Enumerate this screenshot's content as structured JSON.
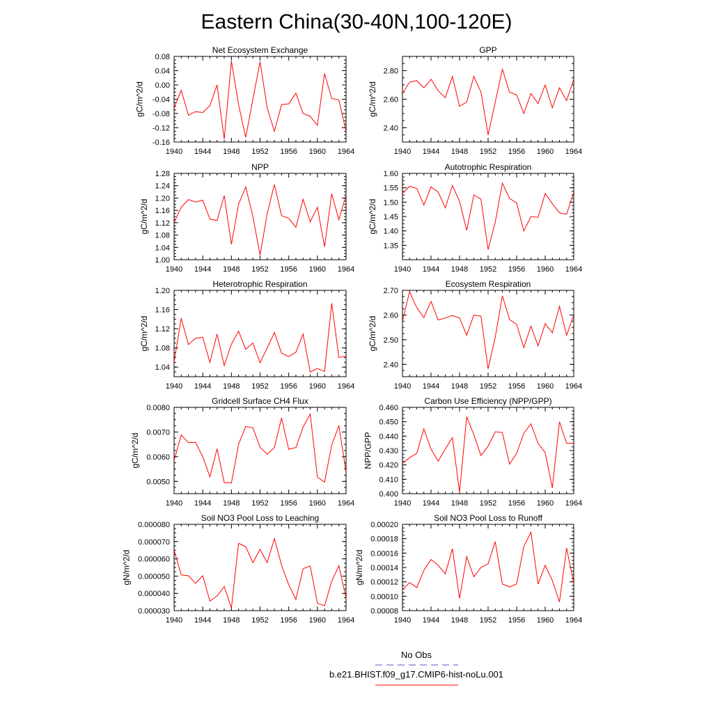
{
  "figure": {
    "title": "Eastern China(30-40N,100-120E)"
  },
  "legend": {
    "items": [
      {
        "label": "No Obs",
        "color": "#5555cc",
        "dash": "dashed"
      },
      {
        "label": "b.e21.BHIST.f09_g17.CMIP6-hist-noLu.001",
        "color": "#ff0000",
        "dash": "solid"
      }
    ]
  },
  "chart_data": [
    {
      "type": "line",
      "title": "Net Ecosystem Exchange",
      "ylabel": "gC/m^2/d",
      "x": [
        1940,
        1941,
        1942,
        1943,
        1944,
        1945,
        1946,
        1947,
        1948,
        1949,
        1950,
        1951,
        1952,
        1953,
        1954,
        1955,
        1956,
        1957,
        1958,
        1959,
        1960,
        1961,
        1962,
        1963,
        1964
      ],
      "xticks": [
        1940,
        1944,
        1948,
        1952,
        1956,
        1960,
        1964
      ],
      "xlim": [
        1940,
        1964
      ],
      "ylim": [
        -0.16,
        0.08
      ],
      "yticks": [
        -0.16,
        -0.12,
        -0.08,
        -0.04,
        0.0,
        0.04,
        0.08
      ],
      "ytick_labels": [
        "-0.16",
        "-0.12",
        "-0.08",
        "-0.04",
        "0.00",
        "0.04",
        "0.08"
      ],
      "series": [
        {
          "color": "#ff0000",
          "values": [
            -0.065,
            -0.015,
            -0.085,
            -0.075,
            -0.077,
            -0.058,
            0.0,
            -0.152,
            0.067,
            -0.055,
            -0.147,
            -0.04,
            0.065,
            -0.065,
            -0.13,
            -0.055,
            -0.053,
            -0.023,
            -0.08,
            -0.088,
            -0.113,
            0.032,
            -0.038,
            -0.042,
            -0.13
          ]
        }
      ]
    },
    {
      "type": "line",
      "title": "GPP",
      "ylabel": "gC/m^2/d",
      "x": [
        1940,
        1941,
        1942,
        1943,
        1944,
        1945,
        1946,
        1947,
        1948,
        1949,
        1950,
        1951,
        1952,
        1953,
        1954,
        1955,
        1956,
        1957,
        1958,
        1959,
        1960,
        1961,
        1962,
        1963,
        1964
      ],
      "xticks": [
        1940,
        1944,
        1948,
        1952,
        1956,
        1960,
        1964
      ],
      "xlim": [
        1940,
        1964
      ],
      "ylim": [
        2.3,
        2.9
      ],
      "yticks": [
        2.4,
        2.6,
        2.8
      ],
      "ytick_labels": [
        "2.40",
        "2.60",
        "2.80"
      ],
      "series": [
        {
          "color": "#ff0000",
          "values": [
            2.64,
            2.72,
            2.73,
            2.68,
            2.74,
            2.66,
            2.61,
            2.76,
            2.55,
            2.58,
            2.76,
            2.65,
            2.35,
            2.58,
            2.81,
            2.65,
            2.63,
            2.5,
            2.64,
            2.57,
            2.7,
            2.54,
            2.68,
            2.59,
            2.74
          ]
        }
      ]
    },
    {
      "type": "line",
      "title": "NPP",
      "ylabel": "gC/m^2/d",
      "x": [
        1940,
        1941,
        1942,
        1943,
        1944,
        1945,
        1946,
        1947,
        1948,
        1949,
        1950,
        1951,
        1952,
        1953,
        1954,
        1955,
        1956,
        1957,
        1958,
        1959,
        1960,
        1961,
        1962,
        1963,
        1964
      ],
      "xticks": [
        1940,
        1944,
        1948,
        1952,
        1956,
        1960,
        1964
      ],
      "xlim": [
        1940,
        1964
      ],
      "ylim": [
        1.0,
        1.28
      ],
      "yticks": [
        1.0,
        1.04,
        1.08,
        1.12,
        1.16,
        1.2,
        1.24,
        1.28
      ],
      "ytick_labels": [
        "1.00",
        "1.04",
        "1.08",
        "1.12",
        "1.16",
        "1.20",
        "1.24",
        "1.28"
      ],
      "series": [
        {
          "color": "#ff0000",
          "values": [
            1.12,
            1.17,
            1.195,
            1.187,
            1.193,
            1.132,
            1.127,
            1.208,
            1.05,
            1.18,
            1.236,
            1.14,
            1.015,
            1.15,
            1.244,
            1.143,
            1.134,
            1.105,
            1.196,
            1.123,
            1.17,
            1.042,
            1.214,
            1.13,
            1.21
          ]
        }
      ]
    },
    {
      "type": "line",
      "title": "Autotrophic Respiration",
      "ylabel": "gC/m^2/d",
      "x": [
        1940,
        1941,
        1942,
        1943,
        1944,
        1945,
        1946,
        1947,
        1948,
        1949,
        1950,
        1951,
        1952,
        1953,
        1954,
        1955,
        1956,
        1957,
        1958,
        1959,
        1960,
        1961,
        1962,
        1963,
        1964
      ],
      "xticks": [
        1940,
        1944,
        1948,
        1952,
        1956,
        1960,
        1964
      ],
      "xlim": [
        1940,
        1964
      ],
      "ylim": [
        1.3,
        1.6
      ],
      "yticks": [
        1.35,
        1.4,
        1.45,
        1.5,
        1.55,
        1.6
      ],
      "ytick_labels": [
        "1.35",
        "1.40",
        "1.45",
        "1.50",
        "1.55",
        "1.60"
      ],
      "series": [
        {
          "color": "#ff0000",
          "values": [
            1.53,
            1.555,
            1.548,
            1.49,
            1.553,
            1.535,
            1.48,
            1.558,
            1.503,
            1.402,
            1.525,
            1.51,
            1.335,
            1.43,
            1.566,
            1.513,
            1.497,
            1.4,
            1.45,
            1.447,
            1.53,
            1.495,
            1.463,
            1.458,
            1.535
          ]
        }
      ]
    },
    {
      "type": "line",
      "title": "Heterotrophic Respiration",
      "ylabel": "gC/m^2/d",
      "x": [
        1940,
        1941,
        1942,
        1943,
        1944,
        1945,
        1946,
        1947,
        1948,
        1949,
        1950,
        1951,
        1952,
        1953,
        1954,
        1955,
        1956,
        1957,
        1958,
        1959,
        1960,
        1961,
        1962,
        1963,
        1964
      ],
      "xticks": [
        1940,
        1944,
        1948,
        1952,
        1956,
        1960,
        1964
      ],
      "xlim": [
        1940,
        1964
      ],
      "ylim": [
        1.02,
        1.2
      ],
      "yticks": [
        1.04,
        1.08,
        1.12,
        1.16,
        1.2
      ],
      "ytick_labels": [
        "1.04",
        "1.08",
        "1.12",
        "1.16",
        "1.20"
      ],
      "series": [
        {
          "color": "#ff0000",
          "values": [
            1.05,
            1.142,
            1.087,
            1.1,
            1.102,
            1.05,
            1.109,
            1.043,
            1.088,
            1.115,
            1.077,
            1.09,
            1.049,
            1.08,
            1.112,
            1.069,
            1.062,
            1.071,
            1.109,
            1.03,
            1.037,
            1.031,
            1.173,
            1.06,
            1.063
          ]
        }
      ]
    },
    {
      "type": "line",
      "title": "Ecosystem Respiration",
      "ylabel": "gC/m^2/d",
      "x": [
        1940,
        1941,
        1942,
        1943,
        1944,
        1945,
        1946,
        1947,
        1948,
        1949,
        1950,
        1951,
        1952,
        1953,
        1954,
        1955,
        1956,
        1957,
        1958,
        1959,
        1960,
        1961,
        1962,
        1963,
        1964
      ],
      "xticks": [
        1940,
        1944,
        1948,
        1952,
        1956,
        1960,
        1964
      ],
      "xlim": [
        1940,
        1964
      ],
      "ylim": [
        2.35,
        2.7
      ],
      "yticks": [
        2.4,
        2.5,
        2.6,
        2.7
      ],
      "ytick_labels": [
        "2.40",
        "2.50",
        "2.60",
        "2.70"
      ],
      "series": [
        {
          "color": "#ff0000",
          "values": [
            2.575,
            2.695,
            2.63,
            2.59,
            2.655,
            2.58,
            2.588,
            2.598,
            2.588,
            2.518,
            2.6,
            2.595,
            2.382,
            2.51,
            2.678,
            2.582,
            2.562,
            2.468,
            2.555,
            2.475,
            2.565,
            2.528,
            2.635,
            2.518,
            2.6
          ]
        }
      ]
    },
    {
      "type": "line",
      "title": "Gridcell Surface CH4 Flux",
      "ylabel": "gC/m^2/d",
      "x": [
        1940,
        1941,
        1942,
        1943,
        1944,
        1945,
        1946,
        1947,
        1948,
        1949,
        1950,
        1951,
        1952,
        1953,
        1954,
        1955,
        1956,
        1957,
        1958,
        1959,
        1960,
        1961,
        1962,
        1963,
        1964
      ],
      "xticks": [
        1940,
        1944,
        1948,
        1952,
        1956,
        1960,
        1964
      ],
      "xlim": [
        1940,
        1964
      ],
      "ylim": [
        0.0045,
        0.008
      ],
      "yticks": [
        0.005,
        0.006,
        0.007,
        0.008
      ],
      "ytick_labels": [
        "0.0050",
        "0.0060",
        "0.0070",
        "0.0080"
      ],
      "series": [
        {
          "color": "#ff0000",
          "values": [
            0.00585,
            0.00688,
            0.00657,
            0.00658,
            0.006,
            0.00518,
            0.00632,
            0.00495,
            0.00493,
            0.0065,
            0.00723,
            0.00717,
            0.00638,
            0.0061,
            0.00637,
            0.00757,
            0.0063,
            0.00637,
            0.0072,
            0.00773,
            0.00517,
            0.00497,
            0.00648,
            0.00725,
            0.00538
          ]
        }
      ]
    },
    {
      "type": "line",
      "title": "Carbon Use Efficiency (NPP/GPP)",
      "ylabel": "NPP/GPP",
      "x": [
        1940,
        1941,
        1942,
        1943,
        1944,
        1945,
        1946,
        1947,
        1948,
        1949,
        1950,
        1951,
        1952,
        1953,
        1954,
        1955,
        1956,
        1957,
        1958,
        1959,
        1960,
        1961,
        1962,
        1963,
        1964
      ],
      "xticks": [
        1940,
        1944,
        1948,
        1952,
        1956,
        1960,
        1964
      ],
      "xlim": [
        1940,
        1964
      ],
      "ylim": [
        0.4,
        0.46
      ],
      "yticks": [
        0.4,
        0.41,
        0.42,
        0.43,
        0.44,
        0.45,
        0.46
      ],
      "ytick_labels": [
        "0.400",
        "0.410",
        "0.420",
        "0.430",
        "0.440",
        "0.450",
        "0.460"
      ],
      "series": [
        {
          "color": "#ff0000",
          "values": [
            0.421,
            0.425,
            0.428,
            0.445,
            0.431,
            0.4225,
            0.431,
            0.439,
            0.401,
            0.4535,
            0.441,
            0.4265,
            0.433,
            0.443,
            0.4425,
            0.4205,
            0.428,
            0.442,
            0.4485,
            0.435,
            0.4285,
            0.404,
            0.45,
            0.435,
            0.435
          ]
        }
      ]
    },
    {
      "type": "line",
      "title": "Soil NO3 Pool Loss to Leaching",
      "ylabel": "gN/m^2/d",
      "x": [
        1940,
        1941,
        1942,
        1943,
        1944,
        1945,
        1946,
        1947,
        1948,
        1949,
        1950,
        1951,
        1952,
        1953,
        1954,
        1955,
        1956,
        1957,
        1958,
        1959,
        1960,
        1961,
        1962,
        1963,
        1964
      ],
      "xticks": [
        1940,
        1944,
        1948,
        1952,
        1956,
        1960,
        1964
      ],
      "xlim": [
        1940,
        1964
      ],
      "ylim": [
        3e-05,
        8e-05
      ],
      "yticks": [
        3e-05,
        4e-05,
        5e-05,
        6e-05,
        7e-05,
        8e-05
      ],
      "ytick_labels": [
        "0.000030",
        "0.000040",
        "0.000050",
        "0.000060",
        "0.000070",
        "0.000080"
      ],
      "series": [
        {
          "color": "#ff0000",
          "values": [
            6.5e-05,
            5.07e-05,
            5.02e-05,
            4.58e-05,
            5.02e-05,
            3.55e-05,
            3.85e-05,
            4.4e-05,
            3.15e-05,
            6.9e-05,
            6.7e-05,
            5.78e-05,
            6.55e-05,
            5.78e-05,
            7.17e-05,
            5.63e-05,
            4.5e-05,
            3.65e-05,
            5.43e-05,
            5.58e-05,
            3.43e-05,
            3.28e-05,
            4.7e-05,
            5.6e-05,
            3.73e-05
          ]
        }
      ]
    },
    {
      "type": "line",
      "title": "Soil NO3 Pool Loss to Runoff",
      "ylabel": "gN/m^2/d",
      "x": [
        1940,
        1941,
        1942,
        1943,
        1944,
        1945,
        1946,
        1947,
        1948,
        1949,
        1950,
        1951,
        1952,
        1953,
        1954,
        1955,
        1956,
        1957,
        1958,
        1959,
        1960,
        1961,
        1962,
        1963,
        1964
      ],
      "xticks": [
        1940,
        1944,
        1948,
        1952,
        1956,
        1960,
        1964
      ],
      "xlim": [
        1940,
        1964
      ],
      "ylim": [
        8e-05,
        0.0002
      ],
      "yticks": [
        8e-05,
        0.0001,
        0.00012,
        0.00014,
        0.00016,
        0.00018,
        0.0002
      ],
      "ytick_labels": [
        "0.00008",
        "0.00010",
        "0.00012",
        "0.00014",
        "0.00016",
        "0.00018",
        "0.00020"
      ],
      "series": [
        {
          "color": "#ff0000",
          "values": [
            0.000109,
            0.000119,
            0.000112,
            0.000136,
            0.000151,
            0.000143,
            0.000131,
            0.000166,
            9.7e-05,
            0.000155,
            0.000127,
            0.00014,
            0.000145,
            0.000176,
            0.000117,
            0.000113,
            0.000117,
            0.000169,
            0.000189,
            0.000117,
            0.000143,
            0.000122,
            9.2e-05,
            0.000167,
            0.000118
          ]
        }
      ]
    }
  ]
}
